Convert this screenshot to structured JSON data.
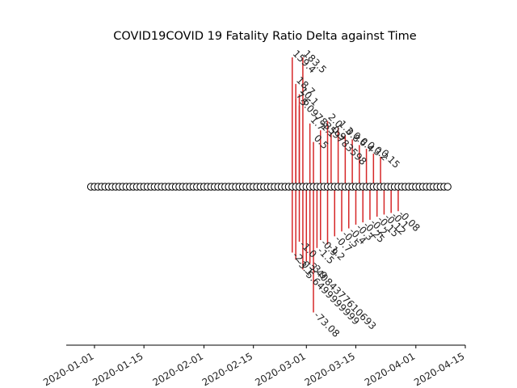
{
  "chart_data": {
    "type": "timeline",
    "title": "COVID19COVID 19 Fatality Ratio Delta against Time",
    "xlabel": "",
    "ylabel": "",
    "x_range": [
      "2019-12-24",
      "2020-04-15"
    ],
    "x_ticks": [
      "2020-01-01",
      "2020-01-15",
      "2020-02-01",
      "2020-02-15",
      "2020-03-01",
      "2020-03-15",
      "2020-04-01",
      "2020-04-15"
    ],
    "marker_dates": {
      "start": "2019-12-31",
      "end": "2020-04-10"
    },
    "stem_color": "#d62728",
    "events": [
      {
        "date": "2020-02-26",
        "value": 159.4,
        "label": "159.4"
      },
      {
        "date": "2020-02-27",
        "value": 18.7,
        "label": "18.7"
      },
      {
        "date": "2020-02-28",
        "value": 10.1,
        "label": "10.1"
      },
      {
        "date": "2020-02-29",
        "value": 183.5,
        "label": "183.5"
      },
      {
        "date": "2020-02-27",
        "value": 7.6,
        "label": "7.6"
      },
      {
        "date": "2020-02-28",
        "value": 5.09783597835,
        "label": "5.0978359783598"
      },
      {
        "date": "2020-03-02",
        "value": 1.7,
        "label": "1.7"
      },
      {
        "date": "2020-03-03",
        "value": 0.5,
        "label": "0.5"
      },
      {
        "date": "2020-03-05",
        "value": 1.1,
        "label": "1.1"
      },
      {
        "date": "2020-03-07",
        "value": 2.0,
        "label": "2.0"
      },
      {
        "date": "2020-03-08",
        "value": 0.9,
        "label": "0.9"
      },
      {
        "date": "2020-03-10",
        "value": 1.3,
        "label": "1.3"
      },
      {
        "date": "2020-03-12",
        "value": 0.8,
        "label": "0.8"
      },
      {
        "date": "2020-03-14",
        "value": 0.6,
        "label": "0.6"
      },
      {
        "date": "2020-03-16",
        "value": 0.4,
        "label": "0.4"
      },
      {
        "date": "2020-03-18",
        "value": 0.3,
        "label": "0.3"
      },
      {
        "date": "2020-03-20",
        "value": 0.2,
        "label": "0.2"
      },
      {
        "date": "2020-03-22",
        "value": 0.15,
        "label": "0.15"
      },
      {
        "date": "2020-02-26",
        "value": -2.0,
        "label": "-2.0"
      },
      {
        "date": "2020-02-27",
        "value": -3.1,
        "label": "-3.1"
      },
      {
        "date": "2020-02-28",
        "value": -1.0,
        "label": "-1.0"
      },
      {
        "date": "2020-02-29",
        "value": -5.6499999999,
        "label": "-5.6499999999"
      },
      {
        "date": "2020-03-01",
        "value": -3.4084377610693,
        "label": "-3.4084377610693"
      },
      {
        "date": "2020-03-02",
        "value": -3.9,
        "label": "-3.9"
      },
      {
        "date": "2020-03-03",
        "value": -73.08,
        "label": "-73.08"
      },
      {
        "date": "2020-03-04",
        "value": -1.5,
        "label": "-1.5"
      },
      {
        "date": "2020-03-05",
        "value": -0.9,
        "label": "-0.9"
      },
      {
        "date": "2020-03-07",
        "value": -1.2,
        "label": "-1.2"
      },
      {
        "date": "2020-03-09",
        "value": -0.7,
        "label": "-0.7"
      },
      {
        "date": "2020-03-11",
        "value": -0.5,
        "label": "-0.5"
      },
      {
        "date": "2020-03-13",
        "value": -0.4,
        "label": "-0.4"
      },
      {
        "date": "2020-03-15",
        "value": -0.3,
        "label": "-0.3"
      },
      {
        "date": "2020-03-17",
        "value": -0.25,
        "label": "-0.25"
      },
      {
        "date": "2020-03-19",
        "value": -0.2,
        "label": "-0.2"
      },
      {
        "date": "2020-03-21",
        "value": -0.15,
        "label": "-0.15"
      },
      {
        "date": "2020-03-23",
        "value": -0.12,
        "label": "-0.12"
      },
      {
        "date": "2020-03-25",
        "value": -0.1,
        "label": "-0.1"
      },
      {
        "date": "2020-03-27",
        "value": -0.08,
        "label": "-0.08"
      }
    ]
  }
}
